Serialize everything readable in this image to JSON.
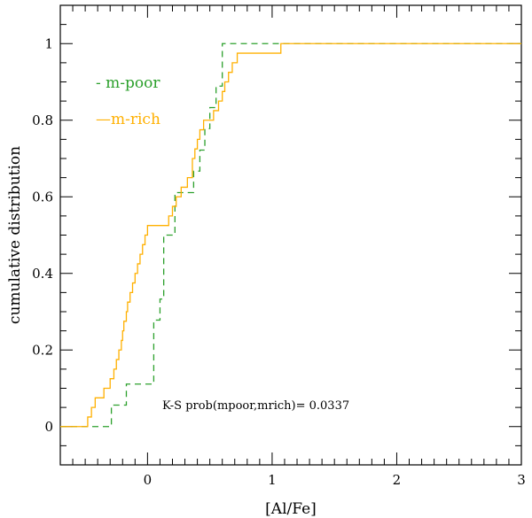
{
  "chart_data": {
    "type": "line",
    "title": "",
    "xlabel": "[Al/Fe]",
    "ylabel": "cumulative distribution",
    "xlim": [
      -0.7,
      3.0
    ],
    "ylim": [
      -0.1,
      1.1
    ],
    "xticks": [
      0,
      1,
      2,
      3
    ],
    "yticks": [
      0,
      0.2,
      0.4,
      0.6,
      0.8,
      1
    ],
    "xtick_labels": [
      "0",
      "1",
      "2",
      "3"
    ],
    "ytick_labels": [
      "0",
      "0.2",
      "0.4",
      "0.6",
      "0.8",
      "1"
    ],
    "grid": false,
    "legend_position": "top-left",
    "step": true,
    "annotation": "K-S prob(mpoor,mrich)= 0.0337",
    "series": [
      {
        "name": "m-poor",
        "color": "#2ca02c",
        "dash": "dashed",
        "legend_label": "- m-poor",
        "x": [
          -0.7,
          -0.29,
          -0.17,
          -0.12,
          0.05,
          0.07,
          0.1,
          0.13,
          0.19,
          0.22,
          0.31,
          0.37,
          0.42,
          0.46,
          0.5,
          0.55,
          0.6,
          3.0
        ],
        "y": [
          0,
          0.056,
          0.111,
          0.111,
          0.278,
          0.278,
          0.333,
          0.5,
          0.5,
          0.611,
          0.611,
          0.667,
          0.722,
          0.778,
          0.833,
          0.889,
          1.0,
          1.0
        ]
      },
      {
        "name": "m-rich",
        "color": "#ffb000",
        "dash": "solid",
        "legend_label": "—m-rich",
        "x": [
          -0.7,
          -0.48,
          -0.45,
          -0.42,
          -0.35,
          -0.3,
          -0.27,
          -0.25,
          -0.23,
          -0.21,
          -0.2,
          -0.19,
          -0.17,
          -0.16,
          -0.14,
          -0.12,
          -0.1,
          -0.08,
          -0.06,
          -0.04,
          -0.02,
          0.0,
          0.05,
          0.12,
          0.17,
          0.2,
          0.23,
          0.27,
          0.32,
          0.36,
          0.38,
          0.4,
          0.42,
          0.45,
          0.47,
          0.5,
          0.53,
          0.57,
          0.6,
          0.62,
          0.65,
          0.68,
          0.72,
          0.77,
          1.07,
          3.0
        ],
        "y": [
          0,
          0.025,
          0.05,
          0.075,
          0.1,
          0.125,
          0.15,
          0.175,
          0.2,
          0.225,
          0.25,
          0.275,
          0.3,
          0.325,
          0.35,
          0.375,
          0.4,
          0.425,
          0.45,
          0.475,
          0.5,
          0.525,
          0.525,
          0.525,
          0.55,
          0.575,
          0.6,
          0.625,
          0.65,
          0.7,
          0.725,
          0.75,
          0.775,
          0.8,
          0.8,
          0.8,
          0.825,
          0.85,
          0.875,
          0.9,
          0.925,
          0.95,
          0.975,
          0.975,
          1.0,
          1.0
        ]
      }
    ]
  }
}
